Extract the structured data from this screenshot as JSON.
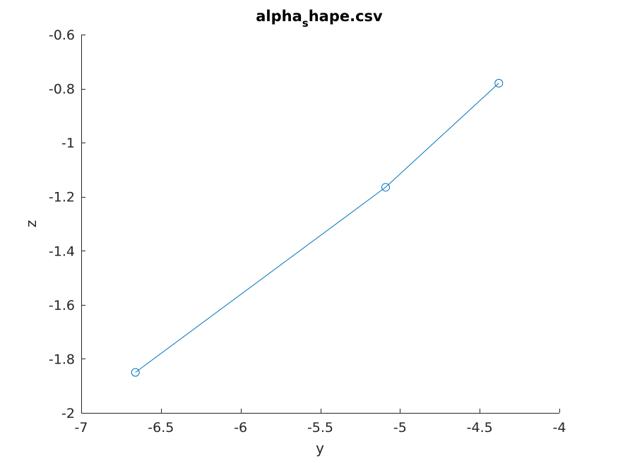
{
  "chart_data": {
    "type": "line",
    "title_main": "alpha",
    "title_subscript": "s",
    "title_rest": "hape.csv",
    "xlabel": "y",
    "ylabel": "z",
    "xlim": [
      -7,
      -4
    ],
    "ylim": [
      -2,
      -0.6
    ],
    "xticks": [
      -7,
      -6.5,
      -6,
      -5.5,
      -5,
      -4.5,
      -4
    ],
    "yticks": [
      -2,
      -1.8,
      -1.6,
      -1.4,
      -1.2,
      -1,
      -0.8,
      -0.6
    ],
    "grid": false,
    "series": [
      {
        "color": "#0072bd",
        "marker": "circle",
        "x": [
          -6.66,
          -5.09,
          -4.38
        ],
        "y": [
          -1.85,
          -1.165,
          -0.78
        ]
      }
    ]
  }
}
